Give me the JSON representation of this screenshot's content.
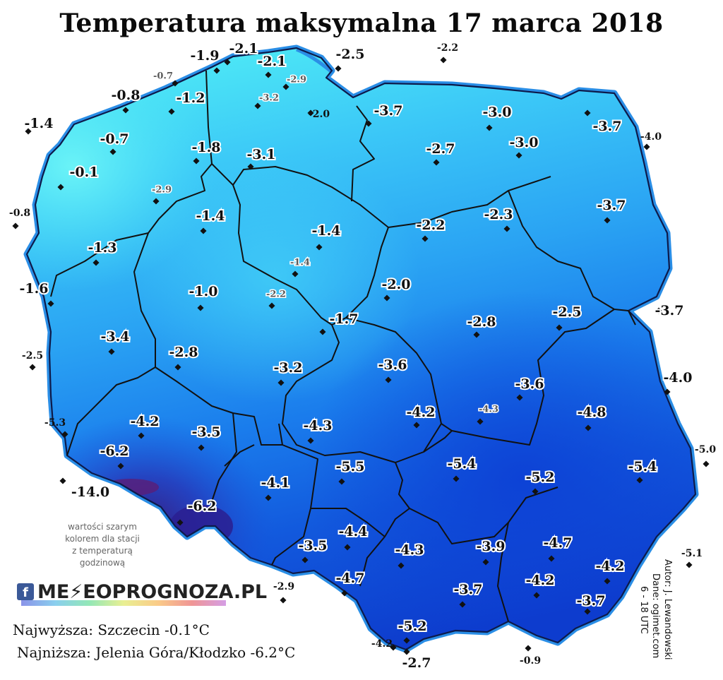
{
  "title": "Temperatura maksymalna 17 marca 2018",
  "colors": {
    "sea_coast": "#2a8ee6",
    "country_outline": "#0d1a4a",
    "region_border": "#111111",
    "ramp": [
      "#4fe8f6",
      "#3fc4f7",
      "#2ea7f5",
      "#1f86ef",
      "#1666e6",
      "#0e48d8",
      "#2a2fa8",
      "#4a1a7a"
    ]
  },
  "legend_note": {
    "line1": "wartości szarym",
    "line2": "kolorem dla stacji",
    "line3": "z temperaturą",
    "line4": "godzinową"
  },
  "logo": {
    "fb_icon": "f",
    "text": "ME⚡EOPROGNOZA.PL"
  },
  "stats": {
    "max": "Najwyższa: Szczecin -0.1°C",
    "min": "Najniższa: Jelenia Góra/Kłodzko -6.2°C"
  },
  "credits": {
    "author": "Autor: J. Lewandowski",
    "source": "Dane: ogimet.com",
    "hours": "6 - 18 UTC"
  },
  "stations": [
    {
      "t": "-1.9",
      "s": "b"
    },
    {
      "t": "-2.1",
      "s": "b"
    },
    {
      "t": "-2.1",
      "s": "b"
    },
    {
      "t": "-2.5",
      "s": "b"
    },
    {
      "t": "-2.2",
      "s": "s"
    },
    {
      "t": "-0.7",
      "s": "g"
    },
    {
      "t": "-2.9",
      "s": "g"
    },
    {
      "t": "-0.8",
      "s": "b"
    },
    {
      "t": "-1.2",
      "s": "b"
    },
    {
      "t": "-3.2",
      "s": "g"
    },
    {
      "t": "-2.0",
      "s": "s"
    },
    {
      "t": "-3.7",
      "s": "b"
    },
    {
      "t": "-3.0",
      "s": "b"
    },
    {
      "t": "-3.7",
      "s": "b"
    },
    {
      "t": "-4.0",
      "s": "s"
    },
    {
      "t": "-1.4",
      "s": "b"
    },
    {
      "t": "-0.7",
      "s": "b"
    },
    {
      "t": "-1.8",
      "s": "b"
    },
    {
      "t": "-3.1",
      "s": "b"
    },
    {
      "t": "-2.7",
      "s": "b"
    },
    {
      "t": "-3.0",
      "s": "b"
    },
    {
      "t": "-0.1",
      "s": "b"
    },
    {
      "t": "-2.9",
      "s": "g"
    },
    {
      "t": "-0.8",
      "s": "s"
    },
    {
      "t": "-1.4",
      "s": "b"
    },
    {
      "t": "-3.7",
      "s": "b"
    },
    {
      "t": "-1.4",
      "s": "b"
    },
    {
      "t": "-2.2",
      "s": "b"
    },
    {
      "t": "-2.3",
      "s": "b"
    },
    {
      "t": "-1.3",
      "s": "b"
    },
    {
      "t": "-1.4",
      "s": "g"
    },
    {
      "t": "-1.6",
      "s": "b"
    },
    {
      "t": "-1.0",
      "s": "b"
    },
    {
      "t": "-2.2",
      "s": "g"
    },
    {
      "t": "-2.0",
      "s": "b"
    },
    {
      "t": "-1.7",
      "s": "b"
    },
    {
      "t": "-2.8",
      "s": "b"
    },
    {
      "t": "-2.5",
      "s": "b"
    },
    {
      "t": "-3.7",
      "s": "b"
    },
    {
      "t": "-3.4",
      "s": "b"
    },
    {
      "t": "-2.5",
      "s": "s"
    },
    {
      "t": "-2.8",
      "s": "b"
    },
    {
      "t": "-3.2",
      "s": "b"
    },
    {
      "t": "-3.6",
      "s": "b"
    },
    {
      "t": "-3.6",
      "s": "b"
    },
    {
      "t": "-4.0",
      "s": "b"
    },
    {
      "t": "-5.3",
      "s": "s"
    },
    {
      "t": "-4.2",
      "s": "b"
    },
    {
      "t": "-3.5",
      "s": "b"
    },
    {
      "t": "-4.3",
      "s": "b"
    },
    {
      "t": "-4.2",
      "s": "b"
    },
    {
      "t": "-4.3",
      "s": "g"
    },
    {
      "t": "-4.8",
      "s": "b"
    },
    {
      "t": "-6.2",
      "s": "b"
    },
    {
      "t": "-5.5",
      "s": "b"
    },
    {
      "t": "-5.4",
      "s": "b"
    },
    {
      "t": "-5.2",
      "s": "b"
    },
    {
      "t": "-5.4",
      "s": "b"
    },
    {
      "t": "-5.0",
      "s": "s"
    },
    {
      "t": "-14.0",
      "s": "b"
    },
    {
      "t": "-4.1",
      "s": "b"
    },
    {
      "t": "-6.2",
      "s": "b"
    },
    {
      "t": "-4.4",
      "s": "b"
    },
    {
      "t": "-3.5",
      "s": "b"
    },
    {
      "t": "-4.3",
      "s": "b"
    },
    {
      "t": "-3.9",
      "s": "b"
    },
    {
      "t": "-4.7",
      "s": "b"
    },
    {
      "t": "-5.1",
      "s": "s"
    },
    {
      "t": "-4.2",
      "s": "b"
    },
    {
      "t": "-2.9",
      "s": "s"
    },
    {
      "t": "-4.7",
      "s": "b"
    },
    {
      "t": "-3.7",
      "s": "b"
    },
    {
      "t": "-4.2",
      "s": "b"
    },
    {
      "t": "-3.7",
      "s": "b"
    },
    {
      "t": "-5.2",
      "s": "b"
    },
    {
      "t": "-4.2",
      "s": "s"
    },
    {
      "t": "-2.7",
      "s": "b"
    },
    {
      "t": "-0.9",
      "s": "s"
    }
  ]
}
